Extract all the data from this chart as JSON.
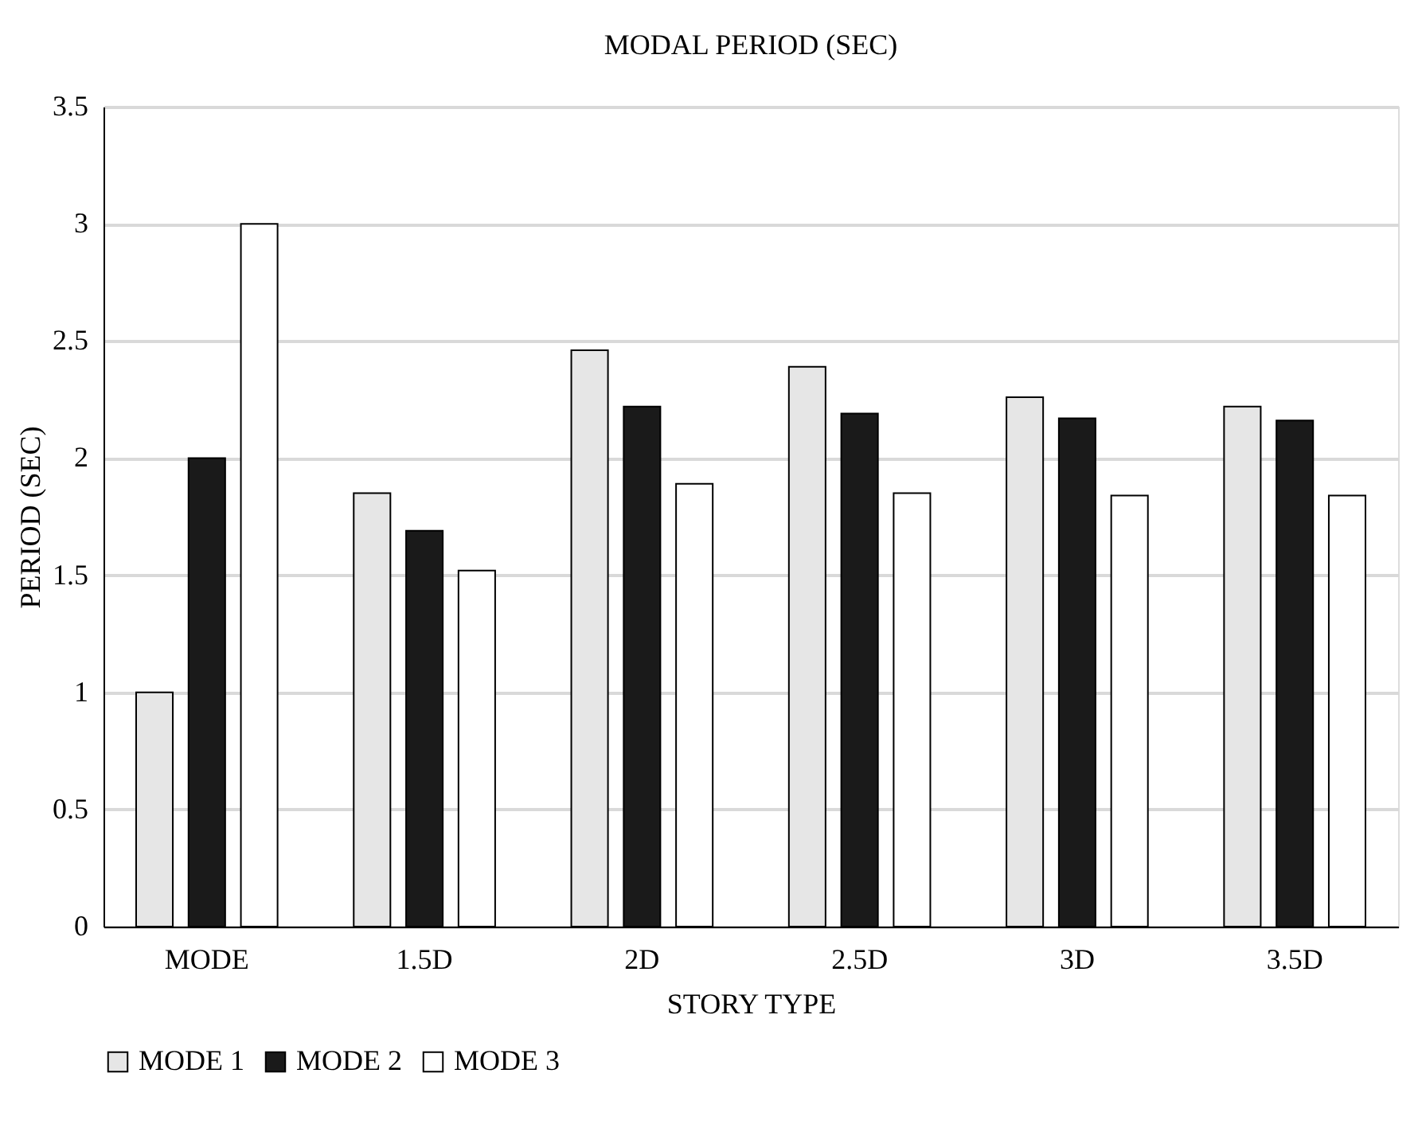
{
  "chart_data": {
    "type": "bar",
    "title": "MODAL PERIOD (SEC)",
    "xlabel": "STORY TYPE",
    "ylabel": "PERIOD (SEC)",
    "categories": [
      "MODE",
      "1.5D",
      "2D",
      "2.5D",
      "3D",
      "3.5D"
    ],
    "series": [
      {
        "name": "MODE 1",
        "color": "#e6e6e6",
        "values": [
          1.0,
          1.85,
          2.46,
          2.39,
          2.26,
          2.22
        ]
      },
      {
        "name": "MODE 2",
        "color": "#1a1a1a",
        "values": [
          2.0,
          1.69,
          2.22,
          2.19,
          2.17,
          2.16
        ]
      },
      {
        "name": "MODE 3",
        "color": "#ffffff",
        "values": [
          3.0,
          1.52,
          1.89,
          1.85,
          1.84,
          1.84
        ]
      }
    ],
    "ylim": [
      0,
      3.5
    ],
    "yticks": [
      0,
      0.5,
      1,
      1.5,
      2,
      2.5,
      3,
      3.5
    ],
    "grid": "y",
    "legend": "bottom"
  }
}
